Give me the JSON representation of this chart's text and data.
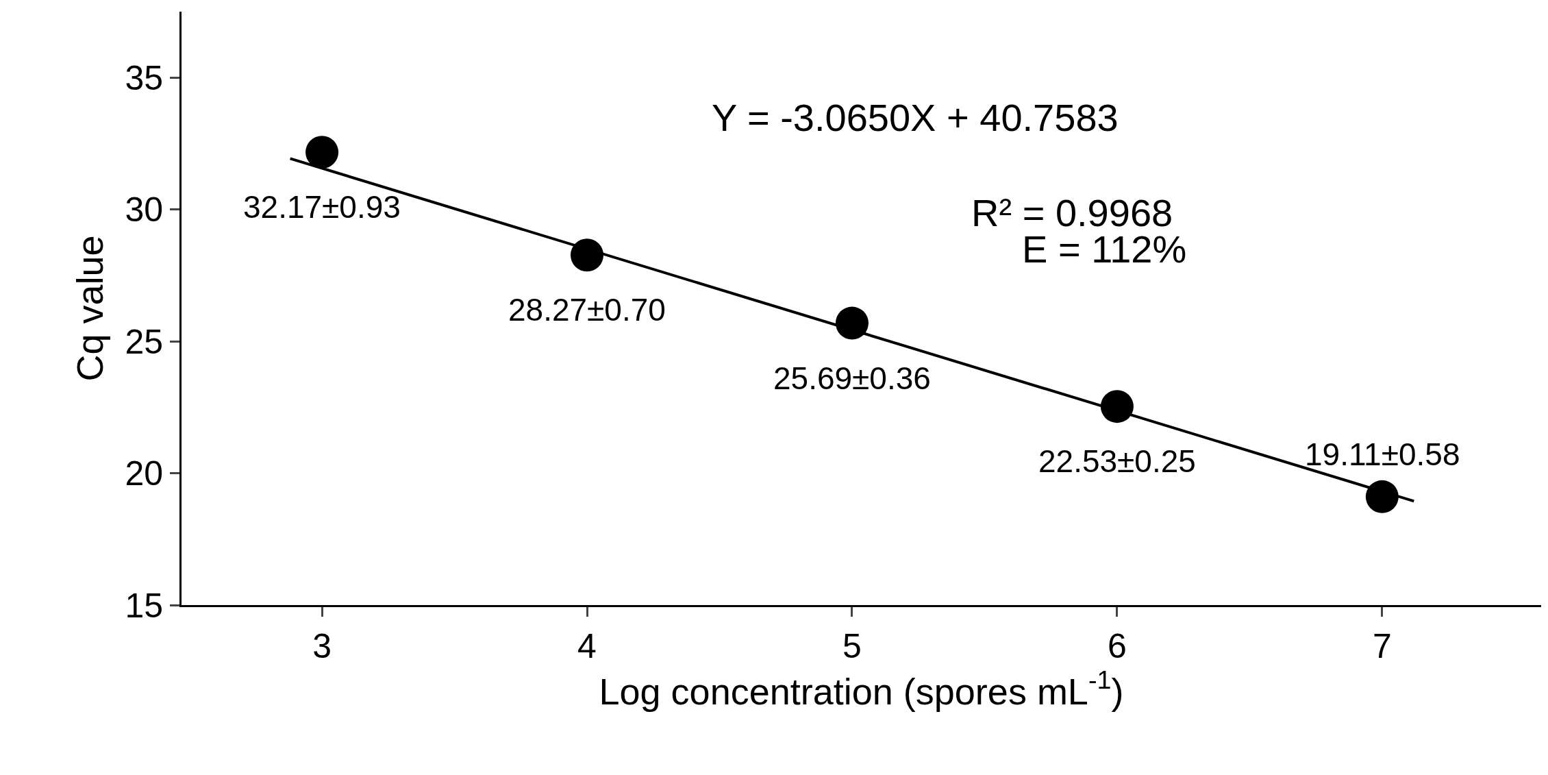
{
  "chart_data": {
    "type": "scatter",
    "xlabel": "Log concentration (spores mL$^{-1}$)",
    "ylabel": "Cq value",
    "x": [
      3,
      4,
      5,
      6,
      7
    ],
    "series": [
      {
        "color": "#000000",
        "marker": "circle",
        "values": [
          32.17,
          28.27,
          25.69,
          22.53,
          19.11
        ],
        "value_labels": [
          "32.17±0.93",
          "28.27±0.70",
          "25.69±0.36",
          "22.53±0.25",
          "19.11±0.58"
        ]
      },
      {
        "type": "line",
        "color": "#000000",
        "x": [
          2.88,
          7.12
        ],
        "values": [
          31.93,
          18.94
        ],
        "line_style": "solid"
      }
    ],
    "annotations": [
      "Y = -3.0650X + 40.7583",
      "R² = 0.9968",
      "E = 112%"
    ],
    "xlim": [
      2.47,
      7.6
    ],
    "xticks": [
      3,
      4,
      5,
      6,
      7
    ],
    "ylim": [
      15,
      37.5
    ],
    "yticks": [
      15,
      20,
      25,
      30,
      35
    ]
  }
}
